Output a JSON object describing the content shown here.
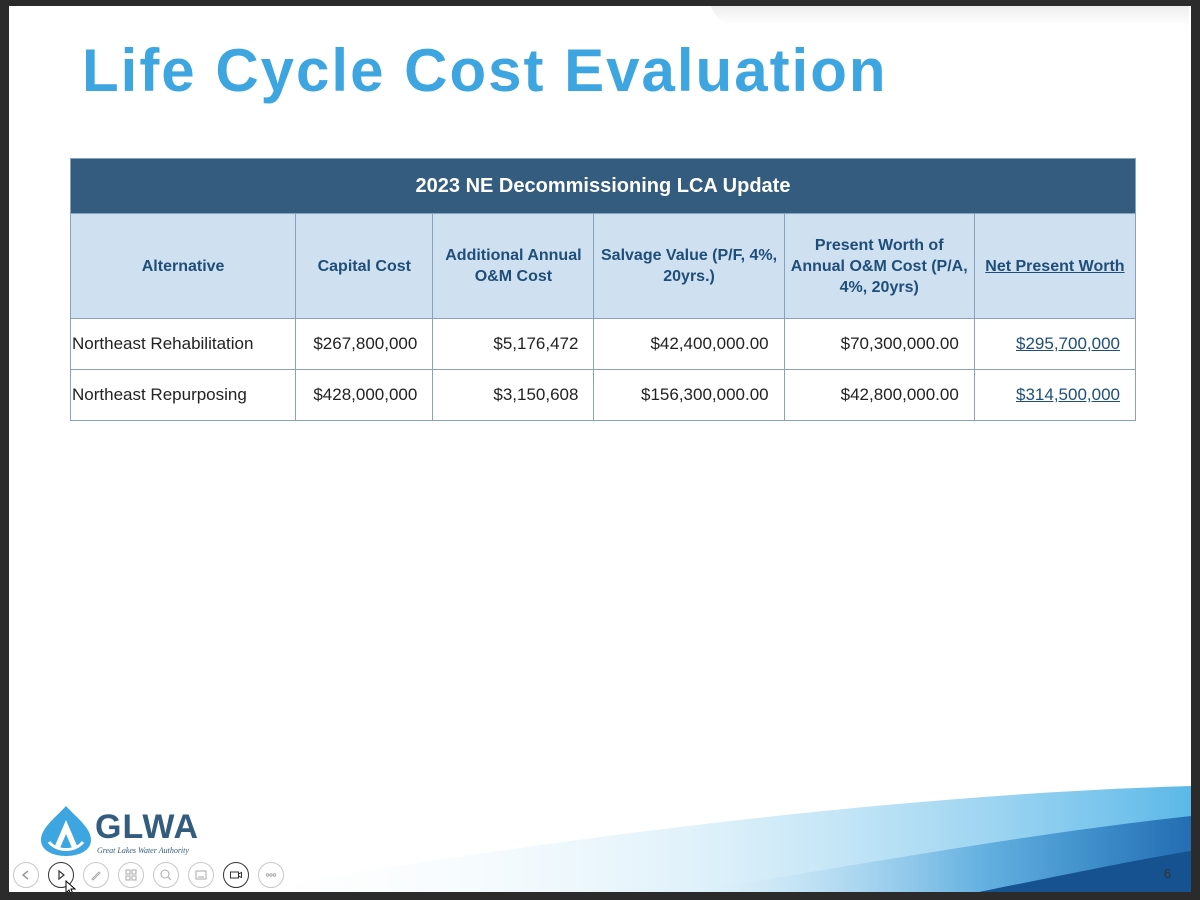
{
  "slide": {
    "title": "Life Cycle Cost Evaluation",
    "page_number": "6"
  },
  "table": {
    "caption": "2023 NE Decommissioning LCA Update",
    "headers": {
      "alternative": "Alternative",
      "capital_cost": "Capital Cost",
      "annual_om": "Additional Annual O&M Cost",
      "salvage": "Salvage Value (P/F, 4%, 20yrs.)",
      "present_worth": "Present Worth of Annual O&M Cost (P/A, 4%, 20yrs)",
      "npw": "Net Present Worth"
    },
    "rows": [
      {
        "alternative": "Northeast Rehabilitation",
        "capital_cost": "$267,800,000",
        "annual_om": "$5,176,472",
        "salvage": "$42,400,000.00",
        "present_worth": "$70,300,000.00",
        "npw": "$295,700,000"
      },
      {
        "alternative": "Northeast Repurposing",
        "capital_cost": "$428,000,000",
        "annual_om": "$3,150,608",
        "salvage": "$156,300,000.00",
        "present_worth": "$42,800,000.00",
        "npw": "$314,500,000"
      }
    ]
  },
  "logo": {
    "name": "GLWA",
    "tagline": "Great Lakes Water Authority"
  },
  "controls": [
    {
      "icon": "previous-icon"
    },
    {
      "icon": "next-icon"
    },
    {
      "icon": "pen-icon"
    },
    {
      "icon": "slides-grid-icon"
    },
    {
      "icon": "zoom-icon"
    },
    {
      "icon": "subtitles-icon"
    },
    {
      "icon": "camera-icon"
    },
    {
      "icon": "more-options-icon"
    }
  ],
  "colors": {
    "title": "#3da5e0",
    "table_caption_bg": "#335c7e",
    "table_header_bg": "#cfe0f0",
    "header_text": "#1f4e79"
  }
}
